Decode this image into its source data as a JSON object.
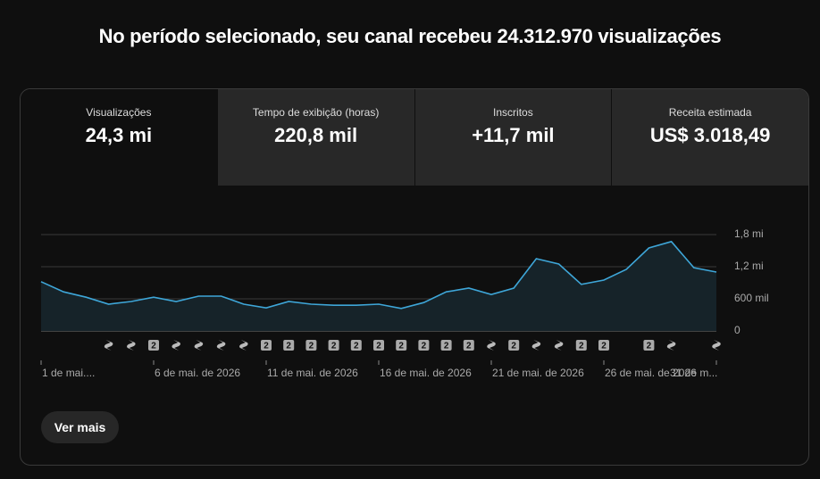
{
  "header": {
    "title": "No período selecionado, seu canal recebeu 24.312.970 visualizações"
  },
  "tabs": [
    {
      "label": "Visualizações",
      "value": "24,3 mi"
    },
    {
      "label": "Tempo de exibição (horas)",
      "value": "220,8 mil"
    },
    {
      "label": "Inscritos",
      "value": "+11,7 mil"
    },
    {
      "label": "Receita estimada",
      "value": "US$ 3.018,49"
    }
  ],
  "chart_data": {
    "type": "area",
    "categories": [
      "1 de mai....",
      null,
      null,
      null,
      null,
      "6 de mai. de 2026",
      null,
      null,
      null,
      null,
      "11 de mai. de 2026",
      null,
      null,
      null,
      null,
      "16 de mai. de 2026",
      null,
      null,
      null,
      null,
      "21 de mai. de 2026",
      null,
      null,
      null,
      null,
      "26 de mai. de 2026",
      null,
      null,
      null,
      null,
      "31 de m..."
    ],
    "values": [
      920000,
      730000,
      630000,
      500000,
      550000,
      630000,
      550000,
      650000,
      650000,
      500000,
      430000,
      550000,
      500000,
      480000,
      480000,
      500000,
      420000,
      530000,
      730000,
      800000,
      680000,
      800000,
      1350000,
      1250000,
      870000,
      950000,
      1150000,
      1550000,
      1670000,
      1180000,
      1100000
    ],
    "color": "#3ea6d8",
    "ylim": [
      0,
      1800000
    ],
    "yticks": [
      0,
      {
        "value": 600000,
        "label": "600 mil"
      },
      {
        "value": 1200000,
        "label": "1,2 mi"
      },
      {
        "value": 1800000,
        "label": "1,8 mi"
      }
    ],
    "grid": true,
    "badges": [
      null,
      null,
      null,
      null,
      null,
      "2",
      null,
      null,
      null,
      null,
      "2",
      "2",
      "2",
      "2",
      "2",
      "2",
      "2",
      "2",
      "2",
      "2",
      null,
      "2",
      null,
      null,
      "2",
      "2",
      null,
      "2",
      null,
      null,
      null
    ]
  },
  "button": "Ver mais"
}
